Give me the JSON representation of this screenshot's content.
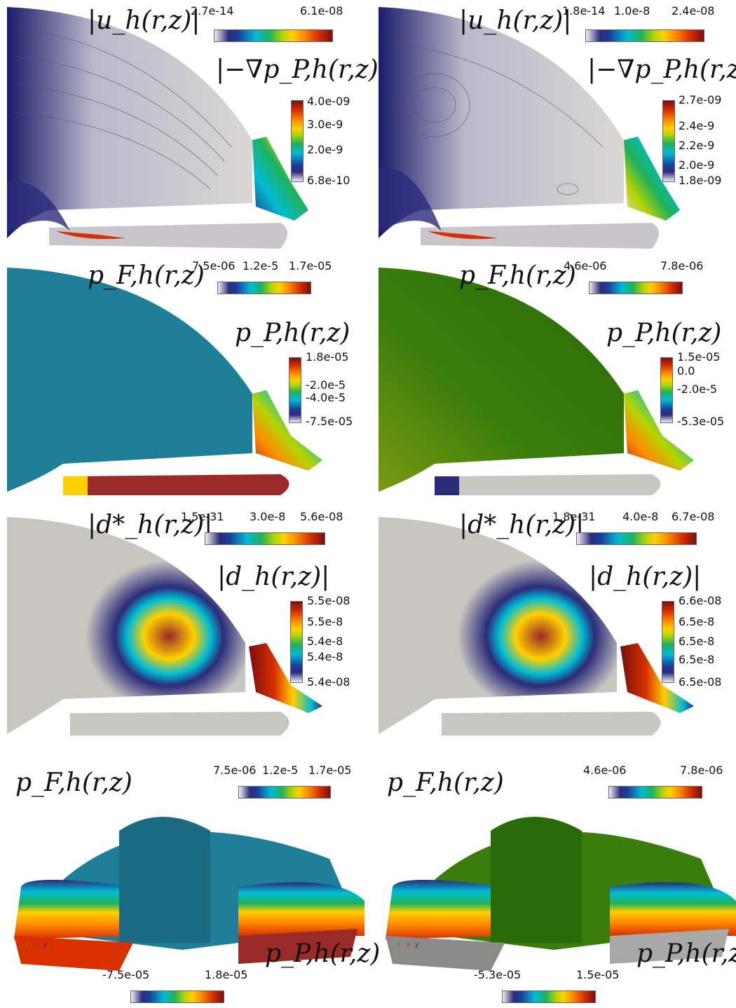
{
  "rows": [
    {
      "left": {
        "label1": "|u_h(r,z)|",
        "ticks1": [
          "2.7e-14",
          "6.1e-08"
        ],
        "label2": "|−∇p_P,h(r,z)|",
        "ticks2": [
          "4.0e-09",
          "3.0e-9",
          "2.0e-9",
          "6.8e-10"
        ]
      },
      "right": {
        "label1": "|u_h(r,z)|",
        "ticks1": [
          "1.8e-14",
          "1.0e-8",
          "2.4e-08"
        ],
        "label2": "|−∇p_P,h(r,z)|",
        "ticks2": [
          "2.7e-09",
          "2.4e-9",
          "2.2e-9",
          "2.0e-9",
          "1.8e-09"
        ]
      }
    },
    {
      "left": {
        "label1": "p_F,h(r,z)",
        "ticks1": [
          "7.5e-06",
          "1.2e-5",
          "1.7e-05"
        ],
        "label2": "p_P,h(r,z)",
        "ticks2": [
          "1.8e-05",
          "-2.0e-5",
          "-4.0e-5",
          "-7.5e-05"
        ]
      },
      "right": {
        "label1": "p_F,h(r,z)",
        "ticks1": [
          "4.6e-06",
          "7.8e-06"
        ],
        "label2": "p_P,h(r,z)",
        "ticks2": [
          "1.5e-05",
          "0.0",
          "-2.0e-5",
          "-5.3e-05"
        ]
      }
    },
    {
      "left": {
        "label1": "|d*_h(r,z)|",
        "ticks1": [
          "1.5e-31",
          "3.0e-8",
          "5.6e-08"
        ],
        "label2": "|d_h(r,z)|",
        "ticks2": [
          "5.5e-08",
          "5.5e-8",
          "5.4e-8",
          "5.4e-8",
          "5.4e-08"
        ]
      },
      "right": {
        "label1": "|d*_h(r,z)|",
        "ticks1": [
          "1.8e-31",
          "4.0e-8",
          "6.7e-08"
        ],
        "label2": "|d_h(r,z)|",
        "ticks2": [
          "6.6e-08",
          "6.5e-8",
          "6.5e-8",
          "6.5e-8",
          "6.5e-08"
        ]
      }
    },
    {
      "left": {
        "label1": "p_F,h(r,z)",
        "ticks1": [
          "7.5e-06",
          "1.2e-5",
          "1.7e-05"
        ],
        "label2": "p_P,h(r,z)",
        "ticks2": [
          "-7.5e-05",
          "1.8e-05"
        ]
      },
      "right": {
        "label1": "p_F,h(r,z)",
        "ticks1": [
          "4.6e-06",
          "7.8e-06"
        ],
        "label2": "p_P,h(r,z)",
        "ticks2": [
          "-5.3e-05",
          "1.5e-05"
        ]
      }
    }
  ],
  "axes_triad": [
    "x",
    "y",
    "z"
  ],
  "colors": {
    "fluid_left": "#1f7f99",
    "fluid_right": "#3a7d0c",
    "grey": "#c8c6c0",
    "red": "#9a2a28"
  }
}
